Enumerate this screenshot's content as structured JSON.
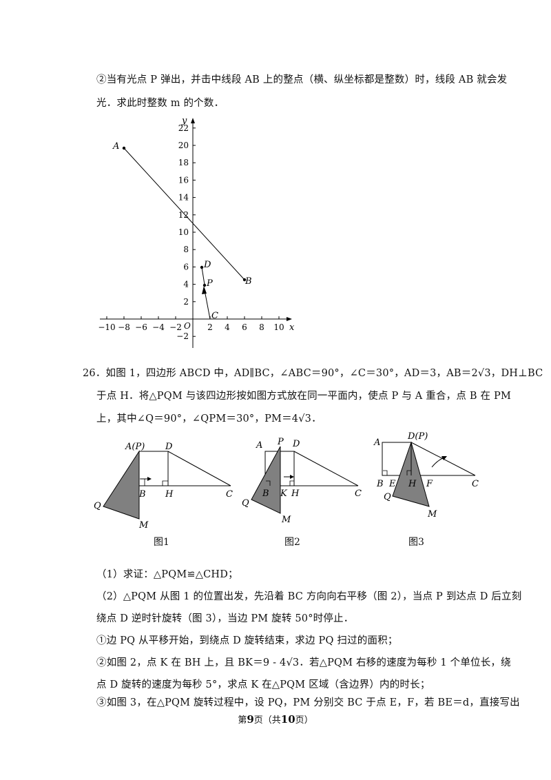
{
  "part2_q": {
    "line1": "②当有光点 P 弹出，并击中线段 AB 上的整点（横、纵坐标都是整数）时，线段 AB 就会发",
    "line2": "光．求此时整数 m 的个数．"
  },
  "graph": {
    "y_label": "y",
    "x_label": "x",
    "origin_label": "O",
    "y_ticks": [
      "22",
      "20",
      "18",
      "16",
      "14",
      "12",
      "10",
      "8",
      "6",
      "4",
      "2",
      "−2"
    ],
    "x_ticks": [
      "−10",
      "−8",
      "−6",
      "−4",
      "−2",
      "2",
      "4",
      "6",
      "8",
      "10"
    ],
    "points": [
      {
        "label": "A",
        "x": -8,
        "y": 19.6
      },
      {
        "label": "B",
        "x": 6,
        "y": 4.8
      },
      {
        "label": "C",
        "x": 2,
        "y": 0
      },
      {
        "label": "D",
        "x": 1,
        "y": 6.1
      },
      {
        "label": "P",
        "x": 1.3,
        "y": 4
      }
    ]
  },
  "q26": {
    "line1": "26．如图 1，四边形 ABCD 中，AD∥BC，∠ABC＝90°，∠C＝30°，AD＝3，AB＝2√3，DH⊥BC",
    "line2": "于点 H．将△PQM 与该四边形按如图方式放在同一平面内，使点 P 与 A 重合，点 B 在 PM",
    "line3": "上，其中∠Q＝90°，∠QPM＝30°，PM＝4√3．",
    "fig1": {
      "caption": "图1",
      "A": "A(P)",
      "D": "D",
      "B": "B",
      "H": "H",
      "C": "C",
      "Q": "Q",
      "M": "M"
    },
    "fig2": {
      "caption": "图2",
      "A": "A",
      "P": "P",
      "D": "D",
      "B": "B",
      "K": "K",
      "H": "H",
      "C": "C",
      "Q": "Q",
      "M": "M"
    },
    "fig3": {
      "caption": "图3",
      "A": "A",
      "D": "D(P)",
      "B": "B",
      "E": "E",
      "H": "H",
      "F": "F",
      "C": "C",
      "Q": "Q",
      "M": "M"
    },
    "sub1": "（1）求证：△PQM≌△CHD；",
    "sub2a": "（2）△PQM 从图 1 的位置出发，先沿着 BC 方向向右平移（图 2），当点 P 到达点 D 后立刻",
    "sub2b": "绕点 D 逆时针旋转（图 3），当边 PM 旋转 50°时停止．",
    "sub2c": "①边 PQ 从平移开始，到绕点 D 旋转结束，求边 PQ 扫过的面积；",
    "sub2d": "②如图 2，点 K 在 BH 上，且 BK＝9 - 4√3．若△PQM 右移的速度为每秒 1 个单位长，绕",
    "sub2e": "点 D 旋转的速度为每秒 5°，求点 K 在△PQM 区域（含边界）内的时长；",
    "sub2f": "③如图 3，在△PQM 旋转过程中，设 PQ，PM 分别交 BC 于点 E，F，若 BE＝d，直接写出"
  },
  "footer": {
    "pre": "第",
    "page": "9",
    "mid": "页（共",
    "total": "10",
    "post": "页）"
  }
}
